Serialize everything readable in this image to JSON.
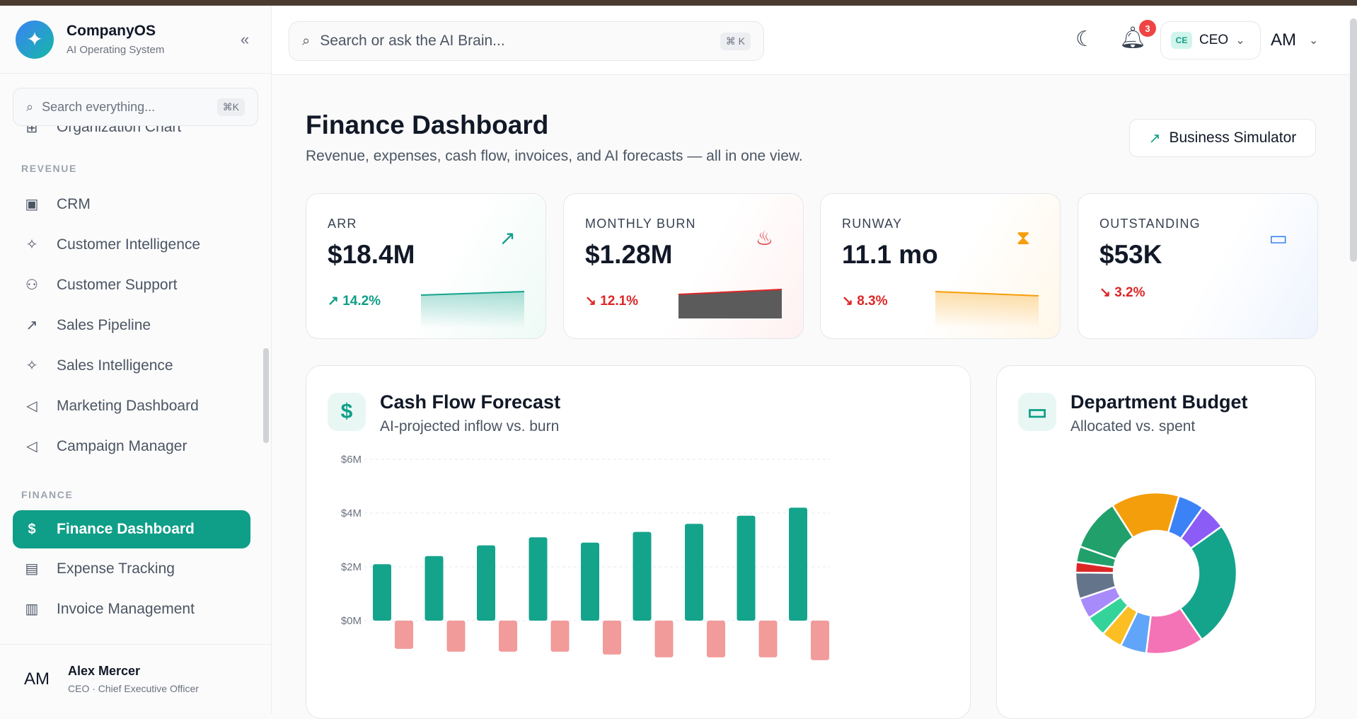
{
  "brand": {
    "name": "CompanyOS",
    "subtitle": "AI Operating System"
  },
  "sidebar": {
    "search_placeholder": "Search everything...",
    "search_shortcut": "⌘K",
    "partial_item": "Organization Chart",
    "sections": [
      {
        "title": "REVENUE",
        "items": [
          "CRM",
          "Customer Intelligence",
          "Customer Support",
          "Sales Pipeline",
          "Sales Intelligence",
          "Marketing Dashboard",
          "Campaign Manager"
        ]
      },
      {
        "title": "FINANCE",
        "items": [
          "Finance Dashboard",
          "Expense Tracking",
          "Invoice Management"
        ]
      }
    ],
    "active_item": "Finance Dashboard",
    "user": {
      "initials": "AM",
      "name": "Alex Mercer",
      "role": "CEO · Chief Executive Officer"
    }
  },
  "header": {
    "search_placeholder": "Search or ask the AI Brain...",
    "search_shortcut": "⌘ K",
    "notifications_count": "3",
    "role_badge": "CE",
    "role_label": "CEO",
    "profile_initials": "AM"
  },
  "page": {
    "title": "Finance Dashboard",
    "subtitle": "Revenue, expenses, cash flow, invoices, and AI forecasts — all in one view.",
    "simulator_button": "Business Simulator"
  },
  "kpis": [
    {
      "label": "ARR",
      "value": "$18.4M",
      "delta": "14.2%",
      "trend": "up",
      "color": "#0f9e88",
      "icon": "trending-up-icon"
    },
    {
      "label": "MONTHLY BURN",
      "value": "$1.28M",
      "delta": "12.1%",
      "trend": "down",
      "color": "#dc2626",
      "icon": "flame-icon"
    },
    {
      "label": "RUNWAY",
      "value": "11.1 mo",
      "delta": "8.3%",
      "trend": "down",
      "color": "#f59e0b",
      "icon": "hourglass-icon"
    },
    {
      "label": "OUTSTANDING",
      "value": "$53K",
      "delta": "3.2%",
      "trend": "down",
      "color": "#3b82f6",
      "icon": "wallet-icon"
    }
  ],
  "cashflow": {
    "title": "Cash Flow Forecast",
    "subtitle": "AI-projected inflow vs. burn"
  },
  "budget": {
    "title": "Department Budget",
    "subtitle": "Allocated vs. spent"
  },
  "chart_data": [
    {
      "type": "bar",
      "title": "Cash Flow Forecast",
      "subtitle": "AI-projected inflow vs. burn",
      "y_ticks": [
        "$6M",
        "$4M",
        "$2M",
        "$0M"
      ],
      "ylim": [
        0,
        6
      ],
      "grid": true,
      "series": [
        {
          "values": [
            2.1,
            2.4,
            2.8,
            3.1,
            2.9,
            3.3,
            3.6,
            3.9,
            4.2
          ],
          "color": "#14a48c"
        },
        {
          "values": [
            -1.0,
            -1.1,
            -1.1,
            -1.1,
            -1.2,
            -1.3,
            -1.3,
            -1.3,
            -1.4
          ],
          "color": "#f29b9b"
        }
      ]
    },
    {
      "type": "pie",
      "title": "Department Budget",
      "subtitle": "Allocated vs. spent",
      "values": [
        24,
        11,
        5,
        4,
        4,
        4,
        5,
        2,
        3,
        10,
        13,
        5,
        5
      ],
      "colors": [
        "#14a48c",
        "#f472b6",
        "#60a5fa",
        "#fbbf24",
        "#34d399",
        "#a78bfa",
        "#64748b",
        "#dc2626",
        "#22a06b",
        "#22a06b",
        "#f59e0b",
        "#3b82f6",
        "#8b5cf6"
      ]
    }
  ]
}
